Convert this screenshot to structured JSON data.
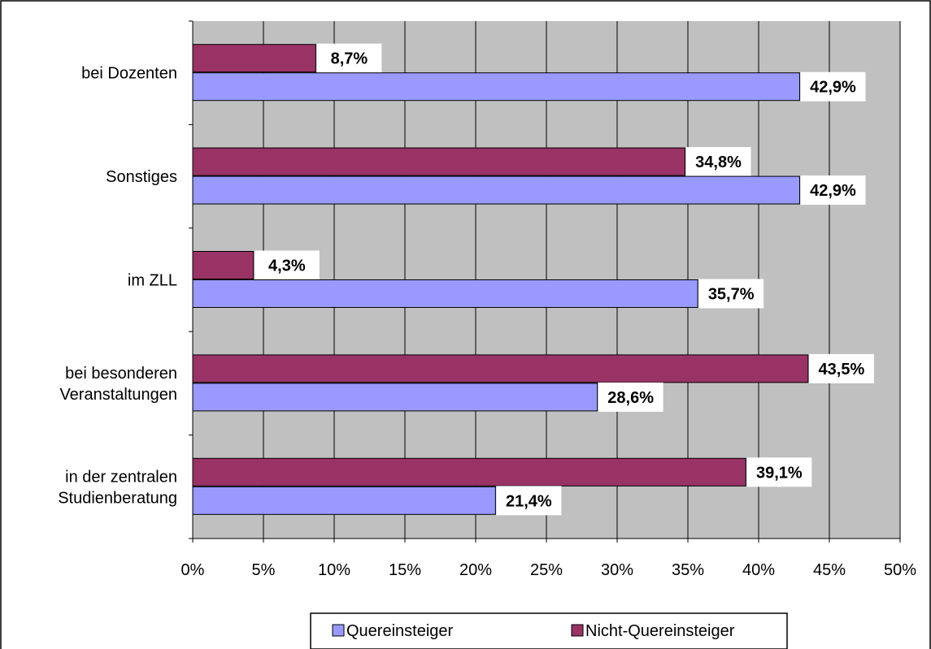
{
  "chart_data": {
    "type": "bar",
    "orientation": "horizontal",
    "categories": [
      [
        "bei Dozenten"
      ],
      [
        "Sonstiges"
      ],
      [
        "im ZLL"
      ],
      [
        "bei besonderen",
        "Veranstaltungen"
      ],
      [
        "in der zentralen",
        "Studienberatung"
      ]
    ],
    "series": [
      {
        "name": "Nicht-Quereinsteiger",
        "color": "#993366",
        "values": [
          8.7,
          34.8,
          4.3,
          43.5,
          39.1
        ],
        "labels": [
          "8,7%",
          "34,8%",
          "4,3%",
          "43,5%",
          "39,1%"
        ]
      },
      {
        "name": "Quereinsteiger",
        "color": "#9999FF",
        "values": [
          42.9,
          42.9,
          35.7,
          28.6,
          21.4
        ],
        "labels": [
          "42,9%",
          "42,9%",
          "35,7%",
          "28,6%",
          "21,4%"
        ]
      }
    ],
    "xlim": [
      0,
      50
    ],
    "xticks": [
      0,
      5,
      10,
      15,
      20,
      25,
      30,
      35,
      40,
      45,
      50
    ],
    "xtick_labels": [
      "0%",
      "5%",
      "10%",
      "15%",
      "20%",
      "25%",
      "30%",
      "35%",
      "40%",
      "45%",
      "50%"
    ],
    "grid": true,
    "plot_background": "#C0C0C0",
    "legend_position": "bottom",
    "legend_order": [
      "Quereinsteiger",
      "Nicht-Quereinsteiger"
    ]
  }
}
